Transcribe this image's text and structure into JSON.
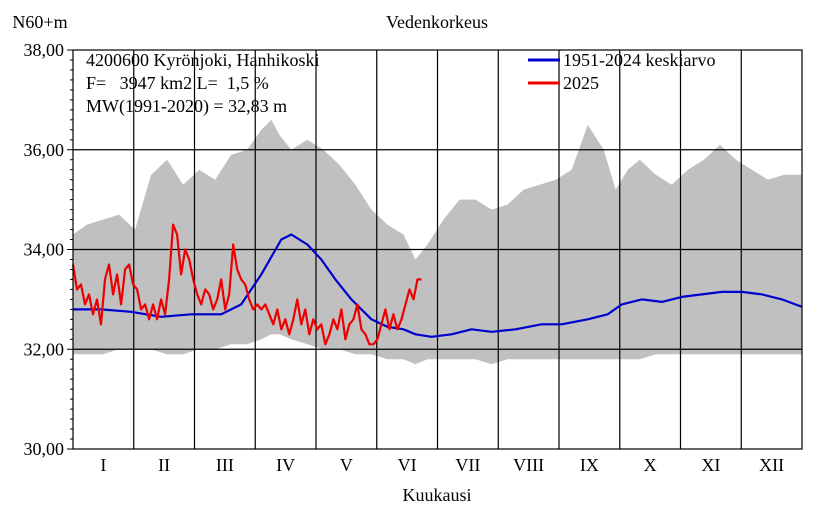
{
  "chart_data": {
    "type": "line",
    "title": "Vedenkorkeus",
    "ylabel": "N60+m",
    "xlabel": "Kuukausi",
    "info_lines": [
      "4200600 Kyrönjoki, Hanhikoski",
      "F=   3947 km2 L=  1,5 %",
      "MW(1991-2020) = 32,83 m"
    ],
    "ylim": [
      30,
      38
    ],
    "y_ticks": [
      "30,00",
      "32,00",
      "34,00",
      "36,00",
      "38,00"
    ],
    "y_tick_values": [
      30,
      32,
      34,
      36,
      38
    ],
    "months": [
      "I",
      "II",
      "III",
      "IV",
      "V",
      "VI",
      "VII",
      "VIII",
      "IX",
      "X",
      "XI",
      "XII"
    ],
    "legend": {
      "position": "top-right"
    },
    "colors": {
      "range": "#c0c0c0",
      "mean": "#0000cc",
      "current": "#ee0000",
      "grid": "#000000"
    },
    "range_band": {
      "name": "",
      "x_day": [
        1,
        8,
        16,
        24,
        32,
        40,
        48,
        56,
        64,
        72,
        80,
        88,
        95,
        100,
        104,
        110,
        118,
        126,
        134,
        142,
        150,
        158,
        166,
        172,
        178,
        186,
        194,
        202,
        210,
        218,
        226,
        234,
        242,
        250,
        258,
        266,
        272,
        278,
        284,
        292,
        300,
        308,
        316,
        324,
        332,
        340,
        348,
        356,
        365
      ],
      "max": [
        34.3,
        34.5,
        34.6,
        34.7,
        34.4,
        35.5,
        35.8,
        35.3,
        35.6,
        35.4,
        35.9,
        36.0,
        36.4,
        36.6,
        36.3,
        36.0,
        36.2,
        36.0,
        35.7,
        35.3,
        34.8,
        34.5,
        34.3,
        33.8,
        34.1,
        34.6,
        35.0,
        35.0,
        34.8,
        34.9,
        35.2,
        35.3,
        35.4,
        35.6,
        36.5,
        36.0,
        35.2,
        35.6,
        35.8,
        35.5,
        35.3,
        35.6,
        35.8,
        36.1,
        35.8,
        35.6,
        35.4,
        35.5,
        35.5
      ],
      "min": [
        31.9,
        31.9,
        31.9,
        32.0,
        32.0,
        32.0,
        31.9,
        31.9,
        32.0,
        32.0,
        32.1,
        32.1,
        32.2,
        32.3,
        32.3,
        32.2,
        32.1,
        32.0,
        32.0,
        31.9,
        31.9,
        31.8,
        31.8,
        31.7,
        31.8,
        31.8,
        31.8,
        31.8,
        31.7,
        31.8,
        31.8,
        31.8,
        31.8,
        31.8,
        31.8,
        31.8,
        31.8,
        31.8,
        31.8,
        31.9,
        31.9,
        31.9,
        31.9,
        31.9,
        31.9,
        31.9,
        31.9,
        31.9,
        31.9
      ]
    },
    "series": [
      {
        "name": "1951-2024 keskiarvo",
        "x_day": [
          1,
          15,
          30,
          45,
          60,
          75,
          85,
          95,
          105,
          110,
          118,
          125,
          132,
          140,
          150,
          158,
          166,
          172,
          180,
          190,
          200,
          210,
          222,
          235,
          245,
          258,
          268,
          275,
          285,
          295,
          305,
          315,
          325,
          335,
          345,
          355,
          365
        ],
        "values": [
          32.8,
          32.8,
          32.75,
          32.65,
          32.7,
          32.7,
          32.9,
          33.5,
          34.2,
          34.3,
          34.1,
          33.8,
          33.4,
          33.0,
          32.6,
          32.45,
          32.4,
          32.3,
          32.25,
          32.3,
          32.4,
          32.35,
          32.4,
          32.5,
          32.5,
          32.6,
          32.7,
          32.9,
          33.0,
          32.95,
          33.05,
          33.1,
          33.15,
          33.15,
          33.1,
          33.0,
          32.85
        ]
      },
      {
        "name": "2025",
        "x_day": [
          1,
          3,
          5,
          7,
          9,
          11,
          13,
          15,
          17,
          19,
          21,
          23,
          25,
          27,
          29,
          31,
          33,
          35,
          37,
          39,
          41,
          43,
          45,
          47,
          49,
          51,
          53,
          55,
          57,
          59,
          61,
          63,
          65,
          67,
          69,
          71,
          73,
          75,
          77,
          79,
          81,
          83,
          85,
          87,
          89,
          91,
          93,
          95,
          97,
          99,
          101,
          103,
          105,
          107,
          109,
          111,
          113,
          115,
          117,
          119,
          121,
          123,
          125,
          127,
          129,
          131,
          133,
          135,
          137,
          139,
          141,
          143,
          145,
          147,
          149,
          151,
          153,
          155,
          157,
          159,
          161,
          163,
          165,
          167,
          169,
          171,
          173,
          175
        ],
        "values": [
          33.7,
          33.2,
          33.3,
          32.9,
          33.1,
          32.7,
          33.0,
          32.5,
          33.4,
          33.7,
          33.1,
          33.5,
          32.9,
          33.6,
          33.7,
          33.3,
          33.2,
          32.8,
          32.9,
          32.6,
          32.9,
          32.6,
          33.0,
          32.7,
          33.4,
          34.5,
          34.3,
          33.5,
          34.0,
          33.8,
          33.4,
          33.1,
          32.9,
          33.2,
          33.1,
          32.8,
          33.0,
          33.4,
          32.8,
          33.1,
          34.1,
          33.6,
          33.4,
          33.3,
          33.0,
          32.8,
          32.9,
          32.8,
          32.9,
          32.7,
          32.5,
          32.8,
          32.4,
          32.6,
          32.3,
          32.6,
          33.0,
          32.5,
          32.8,
          32.3,
          32.6,
          32.4,
          32.5,
          32.1,
          32.3,
          32.6,
          32.4,
          32.8,
          32.2,
          32.5,
          32.6,
          32.9,
          32.4,
          32.3,
          32.1,
          32.1,
          32.2,
          32.5,
          32.8,
          32.4,
          32.7,
          32.4,
          32.6,
          32.9,
          33.2,
          33.0,
          33.4,
          33.4
        ]
      }
    ]
  }
}
